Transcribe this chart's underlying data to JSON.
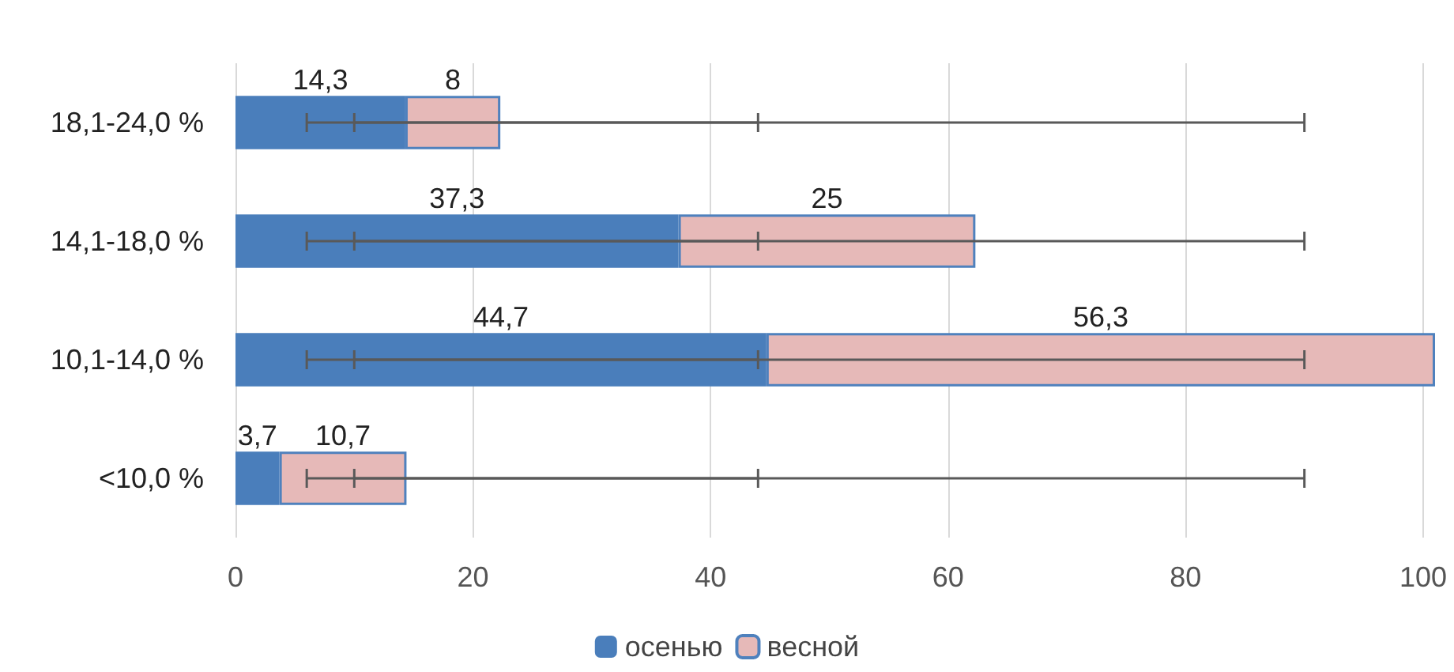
{
  "chart_data": {
    "type": "bar",
    "orientation": "horizontal",
    "stacked": true,
    "categories": [
      "18,1-24,0 %",
      "14,1-18,0 %",
      "10,1-14,0 %",
      "<10,0 %"
    ],
    "series": [
      {
        "name": "осенью",
        "color": "#4a7ebb",
        "values": [
          14.3,
          37.3,
          44.7,
          3.7
        ],
        "value_labels": [
          "14,3",
          "37,3",
          "44,7",
          "3,7"
        ],
        "errors": [
          [
            6,
            44
          ],
          [
            6,
            44
          ],
          [
            6,
            44
          ],
          [
            6,
            44
          ]
        ]
      },
      {
        "name": "весной",
        "color": "#e6b9b8",
        "values": [
          8,
          25,
          56.3,
          10.7
        ],
        "value_labels": [
          "8",
          "25",
          "56,3",
          "10,7"
        ],
        "errors": [
          [
            10,
            90
          ],
          [
            10,
            90
          ],
          [
            10,
            90
          ],
          [
            10,
            90
          ]
        ]
      }
    ],
    "xlim": [
      0,
      101
    ],
    "xticks": [
      0,
      20,
      40,
      60,
      80,
      100
    ],
    "grid": "x",
    "legend": "bottom"
  }
}
